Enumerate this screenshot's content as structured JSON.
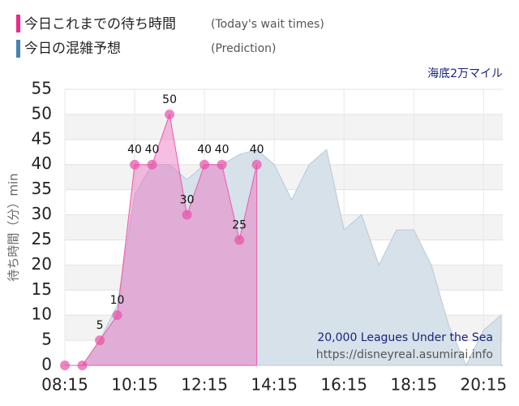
{
  "chart_data": {
    "type": "area",
    "title": "海底2万マイル",
    "legend": [
      {
        "label": "今日これまでの待ち時間",
        "note": "(Today's wait times)",
        "color": "#f0288c"
      },
      {
        "label": "今日の混雑予想",
        "note": "(Prediction)",
        "color": "#4682b4"
      }
    ],
    "y_label": "待ち時間（分）min",
    "watermark": [
      "20,000 Leagues Under the Sea",
      "https://disneyreal.asumirai.info"
    ],
    "xlim": [
      "08:15",
      "20:48"
    ],
    "xticks": [
      "08:15",
      "10:15",
      "12:15",
      "14:15",
      "16:15",
      "18:15",
      "20:15"
    ],
    "ylim": [
      0,
      55
    ],
    "yticks": [
      0,
      5,
      10,
      15,
      20,
      25,
      30,
      35,
      40,
      45,
      50,
      55
    ],
    "grid": true,
    "series": [
      {
        "name": "今日の混雑予想",
        "color": "#b9cad9",
        "fill": "#d6e1ea",
        "x": [
          "08:45",
          "09:15",
          "09:45",
          "10:15",
          "10:45",
          "11:15",
          "11:45",
          "12:15",
          "12:45",
          "13:15",
          "13:45",
          "14:15",
          "14:45",
          "15:15",
          "15:45",
          "16:15",
          "16:45",
          "17:15",
          "17:45",
          "18:15",
          "18:45",
          "19:15",
          "19:45",
          "20:15",
          "20:45"
        ],
        "values": [
          0,
          5,
          12,
          34,
          40,
          40,
          37,
          40,
          40,
          42,
          43,
          40,
          33,
          40,
          43,
          27,
          30,
          20,
          27,
          27,
          20,
          8,
          0,
          7,
          10
        ]
      },
      {
        "name": "今日これまでの待ち時間",
        "color": "#ee5aa8",
        "fill": "rgba(236,110,190,0.45)",
        "markers": true,
        "x": [
          "08:15",
          "08:45",
          "09:15",
          "09:45",
          "10:15",
          "10:45",
          "11:15",
          "11:45",
          "12:15",
          "12:45",
          "13:15",
          "13:45"
        ],
        "values": [
          0,
          0,
          5,
          10,
          40,
          40,
          50,
          30,
          40,
          40,
          25,
          40
        ]
      }
    ]
  }
}
